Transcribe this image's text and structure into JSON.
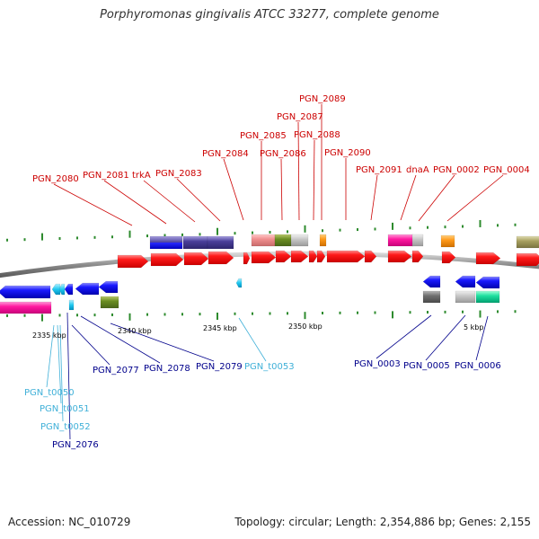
{
  "title": "Porphyromonas gingivalis ATCC 33277, complete genome",
  "footer": {
    "accession": "Accession: NC_010729",
    "summary": "Topology: circular; Length: 2,354,886 bp; Genes: 2,155"
  },
  "colors": {
    "red_label": "#cc0000",
    "blue_label": "#00008b",
    "cyan_label": "#3fb0d8",
    "gene_red": "#ff0000",
    "gene_blue": "#0000ff",
    "backbone": "#808080",
    "tick": "#2e8b2e"
  },
  "kbp_labels": [
    {
      "id": "2335",
      "text": "2335 kbp"
    },
    {
      "id": "2340",
      "text": "2340 kbp"
    },
    {
      "id": "2345",
      "text": "2345 kbp"
    },
    {
      "id": "2350",
      "text": "2350 kbp"
    },
    {
      "id": "5",
      "text": "5 kbp"
    }
  ],
  "gene_labels_top": [
    {
      "id": "PGN_2080",
      "text": "PGN_2080"
    },
    {
      "id": "PGN_2081",
      "text": "PGN_2081"
    },
    {
      "id": "trkA",
      "text": "trkA"
    },
    {
      "id": "PGN_2083",
      "text": "PGN_2083"
    },
    {
      "id": "PGN_2084",
      "text": "PGN_2084"
    },
    {
      "id": "PGN_2085",
      "text": "PGN_2085"
    },
    {
      "id": "PGN_2086",
      "text": "PGN_2086"
    },
    {
      "id": "PGN_2087",
      "text": "PGN_2087"
    },
    {
      "id": "PGN_2088",
      "text": "PGN_2088"
    },
    {
      "id": "PGN_2089",
      "text": "PGN_2089"
    },
    {
      "id": "PGN_2090",
      "text": "PGN_2090"
    },
    {
      "id": "PGN_2091",
      "text": "PGN_2091"
    },
    {
      "id": "dnaA",
      "text": "dnaA"
    },
    {
      "id": "PGN_0002",
      "text": "PGN_0002"
    },
    {
      "id": "PGN_0004",
      "text": "PGN_0004"
    }
  ],
  "gene_labels_bottom": [
    {
      "id": "PGN_t0050",
      "text": "PGN_t0050"
    },
    {
      "id": "PGN_t0051",
      "text": "PGN_t0051"
    },
    {
      "id": "PGN_t0052",
      "text": "PGN_t0052"
    },
    {
      "id": "PGN_2076",
      "text": "PGN_2076"
    },
    {
      "id": "PGN_2077",
      "text": "PGN_2077"
    },
    {
      "id": "PGN_2078",
      "text": "PGN_2078"
    },
    {
      "id": "PGN_2079",
      "text": "PGN_2079"
    },
    {
      "id": "PGN_t0053",
      "text": "PGN_t0053"
    },
    {
      "id": "PGN_0003",
      "text": "PGN_0003"
    },
    {
      "id": "PGN_0005",
      "text": "PGN_0005"
    },
    {
      "id": "PGN_0006",
      "text": "PGN_0006"
    }
  ]
}
